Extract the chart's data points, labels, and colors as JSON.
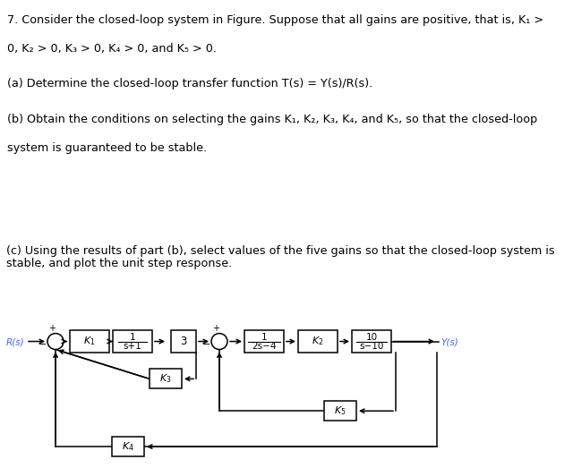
{
  "top_lines": [
    "7. Consider the closed-loop system in Figure. Suppose that all gains are positive, that is, K₁ >",
    "0, K₂ > 0, K₃ > 0, K₄ > 0, and K₅ > 0.",
    "(a) Determine the closed-loop transfer function T(s) = Y(s)/R(s).",
    "(b) Obtain the conditions on selecting the gains K₁, K₂, K₃, K₄, and K₅, so that the closed-loop",
    "system is guaranteed to be stable."
  ],
  "top_bold": [
    false,
    false,
    false,
    false,
    false
  ],
  "part_c_lines": [
    "(c) Using the results of part (b), select values of the five gains so that the closed-loop system is",
    "stable, and plot the unit step response."
  ],
  "separator_color": "#4a4a4a",
  "label_color": "#4169E1",
  "fig_width": 6.4,
  "fig_height": 5.23,
  "dpi": 100
}
